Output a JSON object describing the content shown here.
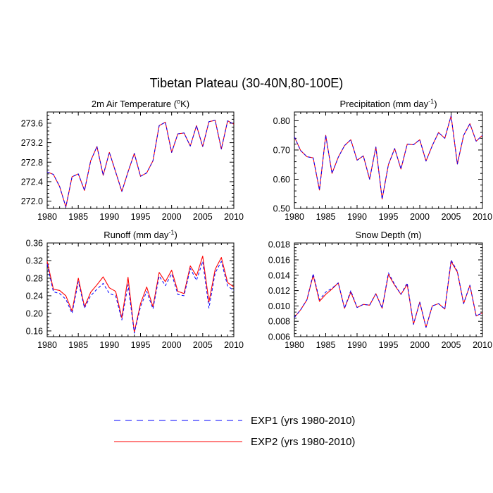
{
  "title": "Tibetan Plateau (30-40N,80-100E)",
  "legend": [
    {
      "label": "EXP1 (yrs 1980-2010)",
      "color": "#0000ff",
      "style": "dashed"
    },
    {
      "label": "EXP2 (yrs 1980-2010)",
      "color": "#ff0000",
      "style": "solid"
    }
  ],
  "chart_data": [
    {
      "type": "line",
      "title": "2m Air Temperature (°K)",
      "title_parts": [
        "2m Air Temperature (",
        "o",
        "K)"
      ],
      "x": [
        1980,
        1981,
        1982,
        1983,
        1984,
        1985,
        1986,
        1987,
        1988,
        1989,
        1990,
        1991,
        1992,
        1993,
        1994,
        1995,
        1996,
        1997,
        1998,
        1999,
        2000,
        2001,
        2002,
        2003,
        2004,
        2005,
        2006,
        2007,
        2008,
        2009,
        2010
      ],
      "xlim": [
        1980,
        2010
      ],
      "xticks": [
        1980,
        1985,
        1990,
        1995,
        2000,
        2005,
        2010
      ],
      "ylim": [
        271.85,
        273.83
      ],
      "yticks": [
        272.0,
        272.4,
        272.8,
        273.2,
        273.6
      ],
      "ytick_labels": [
        "272.0",
        "272.4",
        "272.8",
        "273.2",
        "273.6"
      ],
      "series": [
        {
          "name": "EXP1",
          "values": [
            272.6,
            272.55,
            272.3,
            271.88,
            272.5,
            272.56,
            272.22,
            272.83,
            273.12,
            272.53,
            273.0,
            272.6,
            272.2,
            272.6,
            272.98,
            272.51,
            272.58,
            272.83,
            273.55,
            273.62,
            273.0,
            273.38,
            273.4,
            273.13,
            273.55,
            273.12,
            273.63,
            273.66,
            273.07,
            273.65,
            273.58
          ]
        },
        {
          "name": "EXP2",
          "values": [
            272.6,
            272.55,
            272.3,
            271.88,
            272.5,
            272.56,
            272.22,
            272.83,
            273.12,
            272.53,
            273.0,
            272.6,
            272.2,
            272.6,
            272.98,
            272.51,
            272.58,
            272.83,
            273.55,
            273.62,
            273.0,
            273.38,
            273.4,
            273.13,
            273.55,
            273.12,
            273.63,
            273.66,
            273.07,
            273.65,
            273.58
          ]
        }
      ]
    },
    {
      "type": "line",
      "title": "Precipitation (mm day-1)",
      "title_parts": [
        "Precipitation (mm day",
        "-1",
        ")"
      ],
      "x": [
        1980,
        1981,
        1982,
        1983,
        1984,
        1985,
        1986,
        1987,
        1988,
        1989,
        1990,
        1991,
        1992,
        1993,
        1994,
        1995,
        1996,
        1997,
        1998,
        1999,
        2000,
        2001,
        2002,
        2003,
        2004,
        2005,
        2006,
        2007,
        2008,
        2009,
        2010
      ],
      "xlim": [
        1980,
        2010
      ],
      "xticks": [
        1980,
        1985,
        1990,
        1995,
        2000,
        2005,
        2010
      ],
      "ylim": [
        0.5,
        0.83
      ],
      "yticks": [
        0.5,
        0.6,
        0.7,
        0.8
      ],
      "ytick_labels": [
        "0.50",
        "0.60",
        "0.70",
        "0.80"
      ],
      "series": [
        {
          "name": "EXP1",
          "values": [
            0.745,
            0.698,
            0.677,
            0.673,
            0.563,
            0.75,
            0.62,
            0.675,
            0.715,
            0.735,
            0.665,
            0.68,
            0.6,
            0.71,
            0.532,
            0.65,
            0.705,
            0.635,
            0.72,
            0.718,
            0.735,
            0.662,
            0.715,
            0.76,
            0.74,
            0.817,
            0.652,
            0.75,
            0.79,
            0.73,
            0.75
          ]
        },
        {
          "name": "EXP2",
          "values": [
            0.745,
            0.698,
            0.677,
            0.673,
            0.563,
            0.75,
            0.62,
            0.675,
            0.715,
            0.735,
            0.665,
            0.68,
            0.6,
            0.71,
            0.532,
            0.65,
            0.705,
            0.635,
            0.72,
            0.718,
            0.735,
            0.662,
            0.715,
            0.76,
            0.74,
            0.817,
            0.652,
            0.75,
            0.79,
            0.73,
            0.75
          ]
        }
      ]
    },
    {
      "type": "line",
      "title": "Runoff (mm day-1)",
      "title_parts": [
        "Runoff (mm day",
        "-1",
        ")"
      ],
      "x": [
        1980,
        1981,
        1982,
        1983,
        1984,
        1985,
        1986,
        1987,
        1988,
        1989,
        1990,
        1991,
        1992,
        1993,
        1994,
        1995,
        1996,
        1997,
        1998,
        1999,
        2000,
        2001,
        2002,
        2003,
        2004,
        2005,
        2006,
        2007,
        2008,
        2009,
        2010
      ],
      "xlim": [
        1980,
        2010
      ],
      "xticks": [
        1980,
        1985,
        1990,
        1995,
        2000,
        2005,
        2010
      ],
      "ylim": [
        0.147,
        0.36
      ],
      "yticks": [
        0.16,
        0.2,
        0.24,
        0.28,
        0.32,
        0.36
      ],
      "ytick_labels": [
        "0.16",
        "0.20",
        "0.24",
        "0.28",
        "0.32",
        "0.36"
      ],
      "series": [
        {
          "name": "EXP1",
          "values": [
            0.312,
            0.249,
            0.245,
            0.232,
            0.2,
            0.272,
            0.212,
            0.24,
            0.255,
            0.268,
            0.245,
            0.24,
            0.185,
            0.265,
            0.155,
            0.215,
            0.25,
            0.21,
            0.285,
            0.263,
            0.29,
            0.243,
            0.24,
            0.302,
            0.275,
            0.318,
            0.212,
            0.292,
            0.318,
            0.262,
            0.252
          ]
        },
        {
          "name": "EXP2",
          "values": [
            0.318,
            0.255,
            0.252,
            0.24,
            0.205,
            0.28,
            0.215,
            0.248,
            0.265,
            0.283,
            0.258,
            0.25,
            0.19,
            0.282,
            0.157,
            0.222,
            0.26,
            0.215,
            0.293,
            0.272,
            0.298,
            0.25,
            0.245,
            0.308,
            0.285,
            0.33,
            0.226,
            0.3,
            0.327,
            0.27,
            0.26
          ]
        }
      ]
    },
    {
      "type": "line",
      "title": "Snow Depth (m)",
      "title_parts": [
        "Snow Depth (m)"
      ],
      "x": [
        1980,
        1981,
        1982,
        1983,
        1984,
        1985,
        1986,
        1987,
        1988,
        1989,
        1990,
        1991,
        1992,
        1993,
        1994,
        1995,
        1996,
        1997,
        1998,
        1999,
        2000,
        2001,
        2002,
        2003,
        2004,
        2005,
        2006,
        2007,
        2008,
        2009,
        2010
      ],
      "xlim": [
        1980,
        2010
      ],
      "xticks": [
        1980,
        1985,
        1990,
        1995,
        2000,
        2005,
        2010
      ],
      "ylim": [
        0.006,
        0.0182
      ],
      "yticks": [
        0.006,
        0.008,
        0.01,
        0.012,
        0.014,
        0.016,
        0.018
      ],
      "ytick_labels": [
        "0.006",
        "0.008",
        "0.010",
        "0.012",
        "0.014",
        "0.016",
        "0.018"
      ],
      "series": [
        {
          "name": "EXP1",
          "values": [
            0.0085,
            0.0095,
            0.0108,
            0.0142,
            0.0108,
            0.0118,
            0.0123,
            0.013,
            0.0097,
            0.012,
            0.0098,
            0.0102,
            0.0101,
            0.0116,
            0.0097,
            0.0143,
            0.0128,
            0.0115,
            0.013,
            0.0076,
            0.0105,
            0.0072,
            0.01,
            0.0103,
            0.0096,
            0.016,
            0.0145,
            0.0103,
            0.0127,
            0.0087,
            0.0091
          ]
        },
        {
          "name": "EXP2",
          "values": [
            0.0085,
            0.0095,
            0.0108,
            0.014,
            0.0106,
            0.0115,
            0.0122,
            0.013,
            0.0097,
            0.0118,
            0.0098,
            0.0102,
            0.0101,
            0.0116,
            0.0097,
            0.0141,
            0.0127,
            0.0115,
            0.0128,
            0.0076,
            0.0105,
            0.0072,
            0.01,
            0.0103,
            0.0096,
            0.0158,
            0.0144,
            0.0103,
            0.0127,
            0.0087,
            0.0091
          ]
        }
      ]
    }
  ]
}
